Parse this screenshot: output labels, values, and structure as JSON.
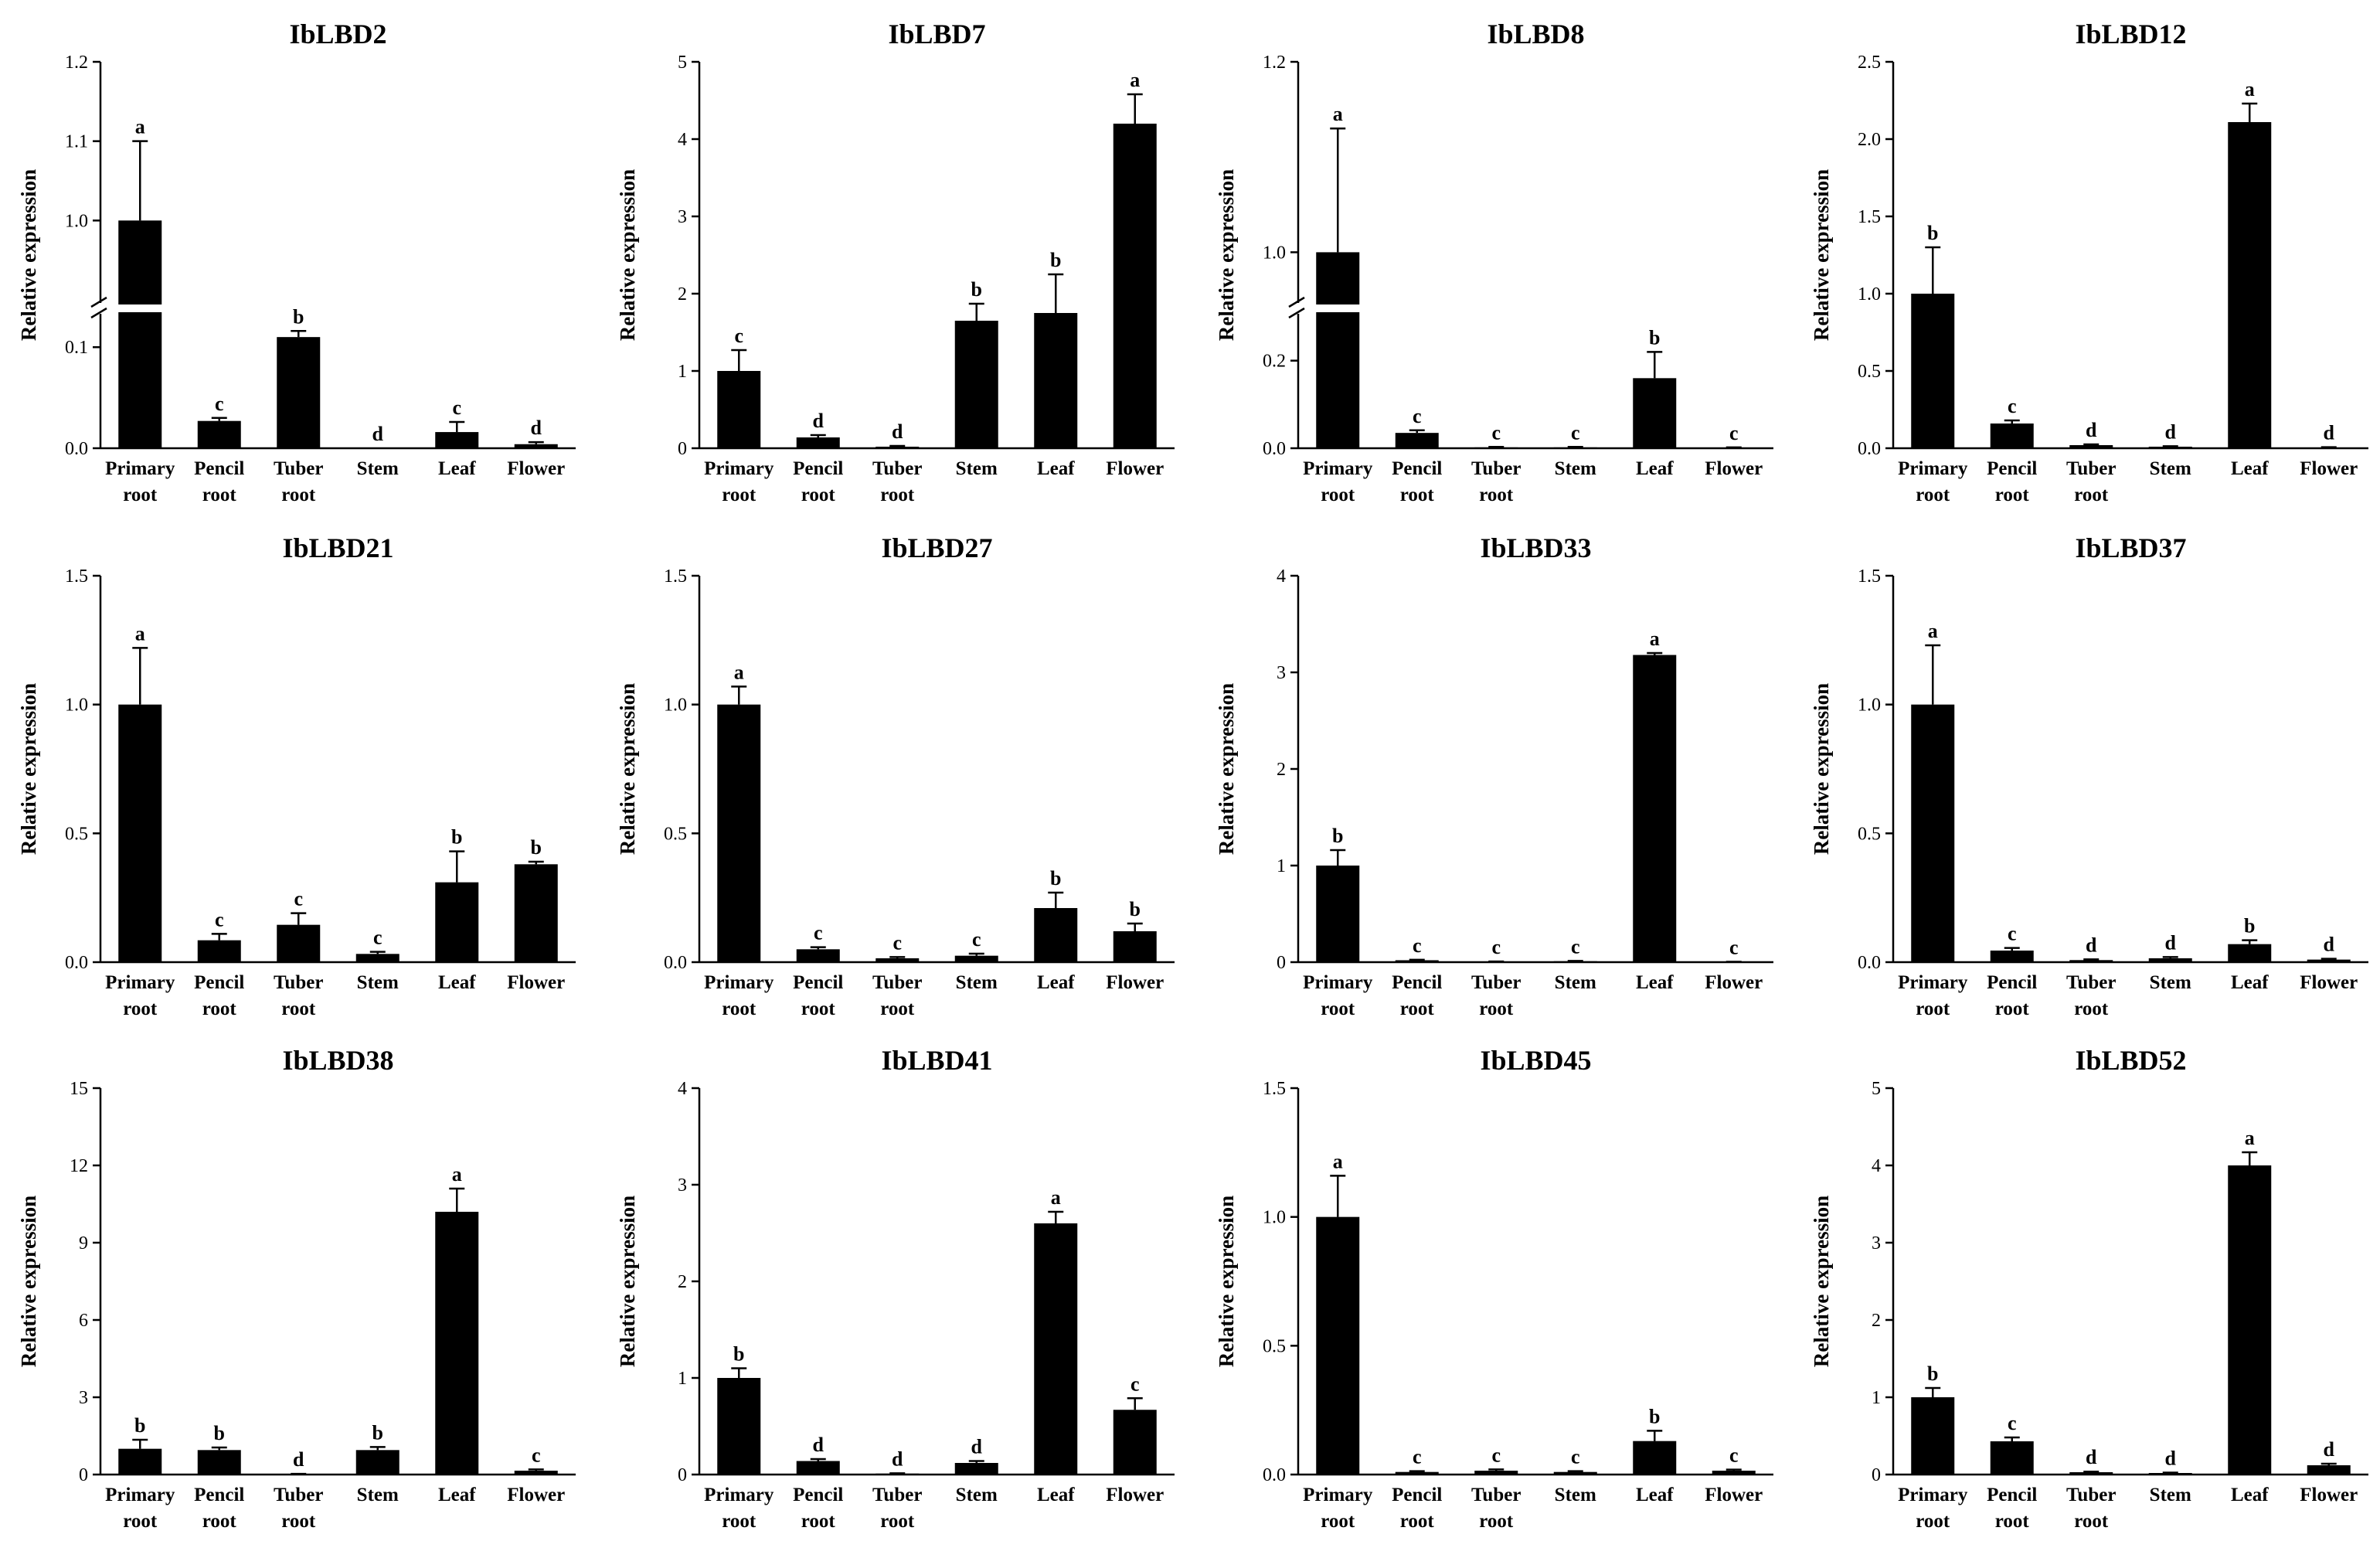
{
  "figure": {
    "axis_label_y": "Relative expression",
    "tissues": [
      {
        "l1": "Primary",
        "l2": "root"
      },
      {
        "l1": "Pencil",
        "l2": "root"
      },
      {
        "l1": "Tuber",
        "l2": "root"
      },
      {
        "l1": "Stem",
        "l2": ""
      },
      {
        "l1": "Leaf",
        "l2": ""
      },
      {
        "l1": "Flower",
        "l2": ""
      }
    ]
  },
  "colors": {
    "bar": "#000000",
    "axis": "#000000",
    "background": "#ffffff"
  },
  "chart_data": [
    {
      "type": "bar",
      "title": "IbLBD2",
      "ylabel": "Relative expression",
      "categories": [
        "Primary root",
        "Pencil root",
        "Tuber root",
        "Stem",
        "Leaf",
        "Flower"
      ],
      "values": [
        1.0,
        0.027,
        0.11,
        0.0,
        0.016,
        0.004
      ],
      "errors": [
        0.1,
        0.003,
        0.006,
        0,
        0.01,
        0.002
      ],
      "letters": [
        "a",
        "c",
        "b",
        "d",
        "c",
        "d"
      ],
      "axis_break": {
        "lower": [
          0,
          0.13
        ],
        "upper": [
          0.9,
          1.2
        ]
      },
      "yticks": [
        0.0,
        0.1,
        1.0,
        1.1,
        1.2
      ],
      "yticklabels": [
        "0.0",
        "0.1",
        "1.0",
        "1.1",
        "1.2"
      ]
    },
    {
      "type": "bar",
      "title": "IbLBD7",
      "ylabel": "Relative expression",
      "categories": [
        "Primary root",
        "Pencil root",
        "Tuber root",
        "Stem",
        "Leaf",
        "Flower"
      ],
      "values": [
        1.0,
        0.14,
        0.02,
        1.65,
        1.75,
        4.2
      ],
      "errors": [
        0.27,
        0.03,
        0.01,
        0.22,
        0.5,
        0.38
      ],
      "letters": [
        "c",
        "d",
        "d",
        "b",
        "b",
        "a"
      ],
      "ylim": [
        0,
        5
      ],
      "yticks": [
        0,
        1,
        2,
        3,
        4,
        5
      ],
      "yticklabels": [
        "0",
        "1",
        "2",
        "3",
        "4",
        "5"
      ]
    },
    {
      "type": "bar",
      "title": "IbLBD8",
      "ylabel": "Relative expression",
      "categories": [
        "Primary root",
        "Pencil root",
        "Tuber root",
        "Stem",
        "Leaf",
        "Flower"
      ],
      "values": [
        1.0,
        0.035,
        0.002,
        0.002,
        0.16,
        0.001
      ],
      "errors": [
        0.13,
        0.006,
        0.001,
        0.001,
        0.06,
        0.001
      ],
      "letters": [
        "a",
        "c",
        "c",
        "c",
        "b",
        "c"
      ],
      "axis_break": {
        "lower": [
          0,
          0.3
        ],
        "upper": [
          0.95,
          1.2
        ]
      },
      "yticks": [
        0.0,
        0.2,
        1.0,
        1.2
      ],
      "yticklabels": [
        "0.0",
        "0.2",
        "1.0",
        "1.2"
      ]
    },
    {
      "type": "bar",
      "title": "IbLBD12",
      "ylabel": "Relative expression",
      "categories": [
        "Primary root",
        "Pencil root",
        "Tuber root",
        "Stem",
        "Leaf",
        "Flower"
      ],
      "values": [
        1.0,
        0.16,
        0.02,
        0.01,
        2.11,
        0.005
      ],
      "errors": [
        0.3,
        0.02,
        0.005,
        0.003,
        0.12,
        0.002
      ],
      "letters": [
        "b",
        "c",
        "d",
        "d",
        "a",
        "d"
      ],
      "ylim": [
        0,
        2.5
      ],
      "yticks": [
        0,
        0.5,
        1.0,
        1.5,
        2.0,
        2.5
      ],
      "yticklabels": [
        "0.0",
        "0.5",
        "1.0",
        "1.5",
        "2.0",
        "2.5"
      ]
    },
    {
      "type": "bar",
      "title": "IbLBD21",
      "ylabel": "Relative expression",
      "categories": [
        "Primary root",
        "Pencil root",
        "Tuber root",
        "Stem",
        "Leaf",
        "Flower"
      ],
      "values": [
        1.0,
        0.085,
        0.145,
        0.032,
        0.31,
        0.38
      ],
      "errors": [
        0.22,
        0.025,
        0.045,
        0.008,
        0.12,
        0.01
      ],
      "letters": [
        "a",
        "c",
        "c",
        "c",
        "b",
        "b"
      ],
      "ylim": [
        0,
        1.5
      ],
      "yticks": [
        0,
        0.5,
        1.0,
        1.5
      ],
      "yticklabels": [
        "0.0",
        "0.5",
        "1.0",
        "1.5"
      ]
    },
    {
      "type": "bar",
      "title": "IbLBD27",
      "ylabel": "Relative expression",
      "categories": [
        "Primary root",
        "Pencil root",
        "Tuber root",
        "Stem",
        "Leaf",
        "Flower"
      ],
      "values": [
        1.0,
        0.05,
        0.015,
        0.025,
        0.21,
        0.12
      ],
      "errors": [
        0.07,
        0.008,
        0.005,
        0.008,
        0.06,
        0.03
      ],
      "letters": [
        "a",
        "c",
        "c",
        "c",
        "b",
        "b"
      ],
      "ylim": [
        0,
        1.5
      ],
      "yticks": [
        0,
        0.5,
        1.0,
        1.5
      ],
      "yticklabels": [
        "0.0",
        "0.5",
        "1.0",
        "1.5"
      ]
    },
    {
      "type": "bar",
      "title": "IbLBD33",
      "ylabel": "Relative expression",
      "categories": [
        "Primary root",
        "Pencil root",
        "Tuber root",
        "Stem",
        "Leaf",
        "Flower"
      ],
      "values": [
        1.0,
        0.02,
        0.005,
        0.01,
        3.18,
        0.003
      ],
      "errors": [
        0.16,
        0.005,
        0.002,
        0.003,
        0.02,
        0.001
      ],
      "letters": [
        "b",
        "c",
        "c",
        "c",
        "a",
        "c"
      ],
      "ylim": [
        0,
        4
      ],
      "yticks": [
        0,
        1,
        2,
        3,
        4
      ],
      "yticklabels": [
        "0",
        "1",
        "2",
        "3",
        "4"
      ]
    },
    {
      "type": "bar",
      "title": "IbLBD37",
      "ylabel": "Relative expression",
      "categories": [
        "Primary root",
        "Pencil root",
        "Tuber root",
        "Stem",
        "Leaf",
        "Flower"
      ],
      "values": [
        1.0,
        0.045,
        0.008,
        0.015,
        0.07,
        0.01
      ],
      "errors": [
        0.23,
        0.01,
        0.003,
        0.005,
        0.015,
        0.003
      ],
      "letters": [
        "a",
        "c",
        "d",
        "d",
        "b",
        "d"
      ],
      "ylim": [
        0,
        1.5
      ],
      "yticks": [
        0,
        0.5,
        1.0,
        1.5
      ],
      "yticklabels": [
        "0.0",
        "0.5",
        "1.0",
        "1.5"
      ]
    },
    {
      "type": "bar",
      "title": "IbLBD38",
      "ylabel": "Relative expression",
      "categories": [
        "Primary root",
        "Pencil root",
        "Tuber root",
        "Stem",
        "Leaf",
        "Flower"
      ],
      "values": [
        1.0,
        0.95,
        0.02,
        0.95,
        10.2,
        0.15
      ],
      "errors": [
        0.35,
        0.1,
        0.005,
        0.12,
        0.9,
        0.05
      ],
      "letters": [
        "b",
        "b",
        "d",
        "b",
        "a",
        "c"
      ],
      "ylim": [
        0,
        15
      ],
      "yticks": [
        0,
        3,
        6,
        9,
        12,
        15
      ],
      "yticklabels": [
        "0",
        "3",
        "6",
        "9",
        "12",
        "15"
      ]
    },
    {
      "type": "bar",
      "title": "IbLBD41",
      "ylabel": "Relative expression",
      "categories": [
        "Primary root",
        "Pencil root",
        "Tuber root",
        "Stem",
        "Leaf",
        "Flower"
      ],
      "values": [
        1.0,
        0.14,
        0.01,
        0.12,
        2.6,
        0.67
      ],
      "errors": [
        0.1,
        0.02,
        0.003,
        0.02,
        0.12,
        0.12
      ],
      "letters": [
        "b",
        "d",
        "d",
        "d",
        "a",
        "c"
      ],
      "ylim": [
        0,
        4
      ],
      "yticks": [
        0,
        1,
        2,
        3,
        4
      ],
      "yticklabels": [
        "0",
        "1",
        "2",
        "3",
        "4"
      ]
    },
    {
      "type": "bar",
      "title": "IbLBD45",
      "ylabel": "Relative expression",
      "categories": [
        "Primary root",
        "Pencil root",
        "Tuber root",
        "Stem",
        "Leaf",
        "Flower"
      ],
      "values": [
        1.0,
        0.01,
        0.015,
        0.01,
        0.13,
        0.015
      ],
      "errors": [
        0.16,
        0.003,
        0.005,
        0.003,
        0.04,
        0.004
      ],
      "letters": [
        "a",
        "c",
        "c",
        "c",
        "b",
        "c"
      ],
      "ylim": [
        0,
        1.5
      ],
      "yticks": [
        0,
        0.5,
        1.0,
        1.5
      ],
      "yticklabels": [
        "0.0",
        "0.5",
        "1.0",
        "1.5"
      ]
    },
    {
      "type": "bar",
      "title": "IbLBD52",
      "ylabel": "Relative expression",
      "categories": [
        "Primary root",
        "Pencil root",
        "Tuber root",
        "Stem",
        "Leaf",
        "Flower"
      ],
      "values": [
        1.0,
        0.43,
        0.03,
        0.02,
        4.0,
        0.12
      ],
      "errors": [
        0.12,
        0.05,
        0.008,
        0.005,
        0.17,
        0.02
      ],
      "letters": [
        "b",
        "c",
        "d",
        "d",
        "a",
        "d"
      ],
      "ylim": [
        0,
        5
      ],
      "yticks": [
        0,
        1,
        2,
        3,
        4,
        5
      ],
      "yticklabels": [
        "0",
        "1",
        "2",
        "3",
        "4",
        "5"
      ]
    }
  ]
}
